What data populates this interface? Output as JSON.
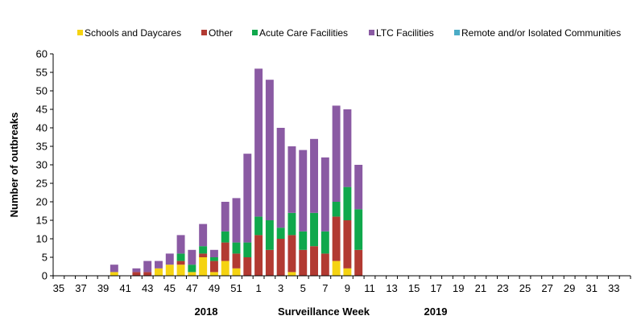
{
  "chart_data": {
    "type": "bar",
    "stacked": true,
    "x_tick_labels": [
      "35",
      "37",
      "39",
      "41",
      "43",
      "45",
      "47",
      "49",
      "51",
      "1",
      "3",
      "5",
      "7",
      "9",
      "11",
      "13",
      "15",
      "17",
      "19",
      "21",
      "23",
      "25",
      "27",
      "29",
      "31",
      "33"
    ],
    "weeks": [
      35,
      36,
      37,
      38,
      39,
      40,
      41,
      42,
      43,
      44,
      45,
      46,
      47,
      48,
      49,
      50,
      51,
      52,
      1,
      2,
      3,
      4,
      5,
      6,
      7,
      8,
      9,
      10,
      11,
      12,
      13,
      14,
      15,
      16,
      17,
      18,
      19,
      20,
      21,
      22,
      23,
      24,
      25,
      26,
      27,
      28,
      29,
      30,
      31,
      32,
      33,
      34
    ],
    "series": [
      {
        "name": "Schools and Daycares",
        "color": "#f5d312",
        "values": [
          0,
          0,
          0,
          0,
          0,
          1,
          0,
          0,
          0,
          2,
          3,
          3,
          1,
          5,
          1,
          4,
          2,
          0,
          0,
          0,
          0,
          1,
          0,
          0,
          0,
          4,
          2,
          0,
          0,
          0,
          0,
          0,
          0,
          0,
          0,
          0,
          0,
          0,
          0,
          0,
          0,
          0,
          0,
          0,
          0,
          0,
          0,
          0,
          0,
          0,
          0,
          0
        ]
      },
      {
        "name": "Other",
        "color": "#b23a32",
        "values": [
          0,
          0,
          0,
          0,
          0,
          0,
          0,
          1,
          1,
          0,
          0,
          1,
          0,
          1,
          3,
          5,
          4,
          5,
          11,
          7,
          10,
          10,
          7,
          8,
          6,
          12,
          13,
          7,
          0,
          0,
          0,
          0,
          0,
          0,
          0,
          0,
          0,
          0,
          0,
          0,
          0,
          0,
          0,
          0,
          0,
          0,
          0,
          0,
          0,
          0,
          0,
          0
        ]
      },
      {
        "name": "Acute Care Facilities",
        "color": "#10a84c",
        "values": [
          0,
          0,
          0,
          0,
          0,
          0,
          0,
          0,
          0,
          0,
          0,
          2,
          2,
          2,
          1,
          3,
          3,
          4,
          5,
          8,
          3,
          6,
          5,
          9,
          6,
          4,
          9,
          11,
          0,
          0,
          0,
          0,
          0,
          0,
          0,
          0,
          0,
          0,
          0,
          0,
          0,
          0,
          0,
          0,
          0,
          0,
          0,
          0,
          0,
          0,
          0,
          0
        ]
      },
      {
        "name": "LTC Facilities",
        "color": "#8a5aa3",
        "values": [
          0,
          0,
          0,
          0,
          0,
          2,
          0,
          1,
          3,
          2,
          3,
          5,
          4,
          6,
          2,
          8,
          12,
          24,
          40,
          38,
          27,
          18,
          22,
          20,
          20,
          26,
          21,
          12,
          0,
          0,
          0,
          0,
          0,
          0,
          0,
          0,
          0,
          0,
          0,
          0,
          0,
          0,
          0,
          0,
          0,
          0,
          0,
          0,
          0,
          0,
          0,
          0
        ]
      },
      {
        "name": "Remote and/or Isolated Communities",
        "color": "#4bacc6",
        "values": [
          0,
          0,
          0,
          0,
          0,
          0,
          0,
          0,
          0,
          0,
          0,
          0,
          0,
          0,
          0,
          0,
          0,
          0,
          0,
          0,
          0,
          0,
          0,
          0,
          0,
          0,
          0,
          0,
          0,
          0,
          0,
          0,
          0,
          0,
          0,
          0,
          0,
          0,
          0,
          0,
          0,
          0,
          0,
          0,
          0,
          0,
          0,
          0,
          0,
          0,
          0,
          0
        ]
      }
    ],
    "y_ticks": [
      "0",
      "5",
      "10",
      "15",
      "20",
      "25",
      "30",
      "35",
      "40",
      "45",
      "50",
      "55",
      "60"
    ],
    "ylim": [
      0,
      60
    ],
    "ylabel": "Number of outbreaks",
    "xlabel": "Surveillance Week",
    "year_labels": [
      "2018",
      "2019"
    ],
    "legend_position": "top",
    "grid": false
  }
}
